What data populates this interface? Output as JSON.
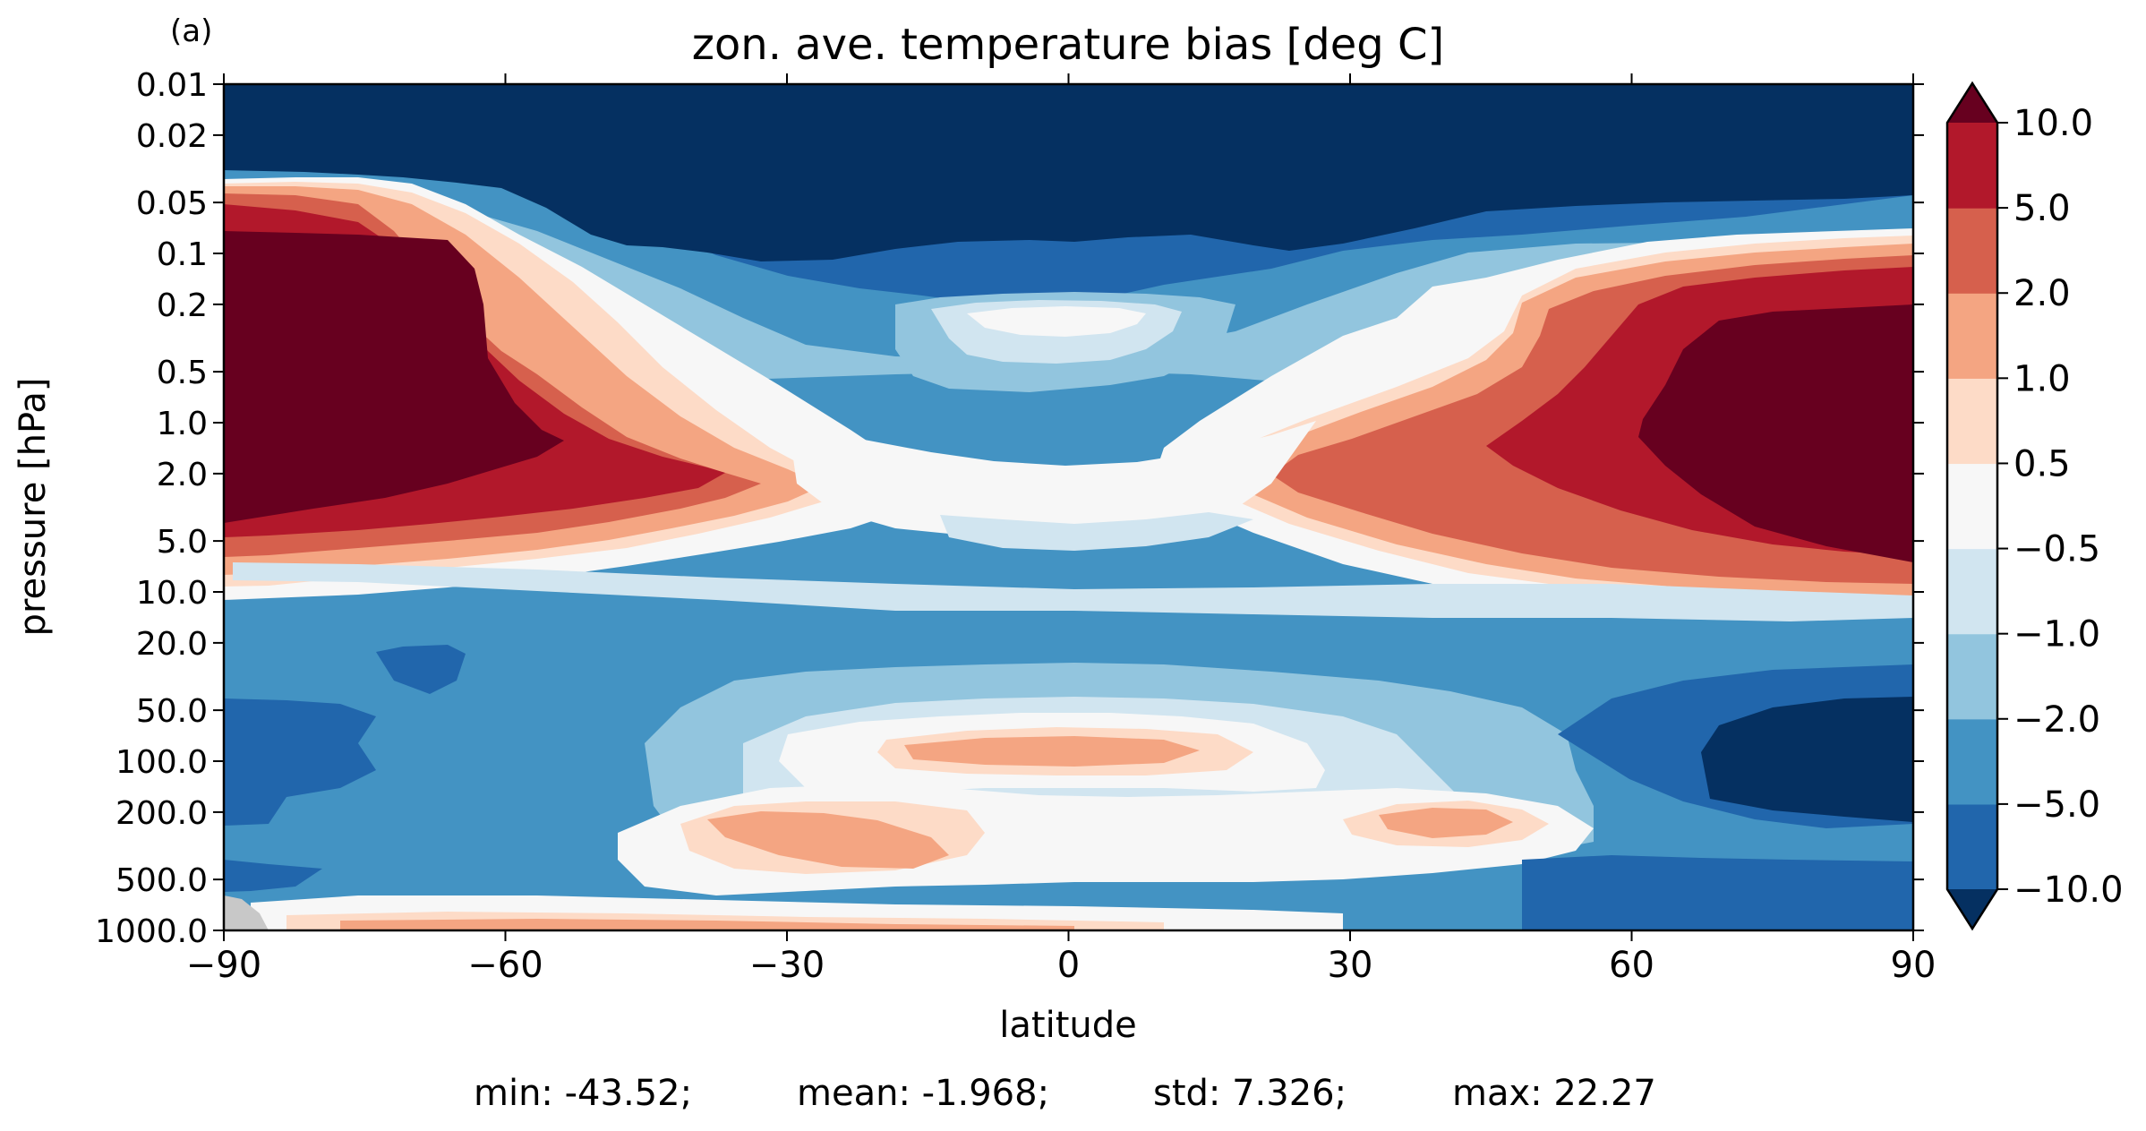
{
  "panel_label": "(a)",
  "chart_data": {
    "type": "contourf",
    "title": "zon. ave. temperature bias [deg C]",
    "xlabel": "latitude",
    "ylabel": "pressure [hPa]",
    "xlim": [
      -90,
      90
    ],
    "ylim": [
      1000.0,
      0.01
    ],
    "yscale": "log",
    "x_ticks": [
      "−90",
      "−60",
      "−30",
      "0",
      "30",
      "60",
      "90"
    ],
    "y_ticks": [
      "0.01",
      "0.02",
      "0.05",
      "0.1",
      "0.2",
      "0.5",
      "1.0",
      "2.0",
      "5.0",
      "10.0",
      "20.0",
      "50.0",
      "100.0",
      "200.0",
      "500.0",
      "1000.0"
    ],
    "colorbar": {
      "extend": "both",
      "levels": [
        -10.0,
        -5.0,
        -2.0,
        -1.0,
        -0.5,
        0.5,
        1.0,
        2.0,
        5.0,
        10.0
      ],
      "tick_labels": [
        "−10.0",
        "−5.0",
        "−2.0",
        "−1.0",
        "−0.5",
        "0.5",
        "1.0",
        "2.0",
        "5.0",
        "10.0"
      ],
      "colors": [
        "#053061",
        "#2166ac",
        "#4393c3",
        "#92c5de",
        "#d1e5f0",
        "#f7f7f7",
        "#fddbc7",
        "#f4a582",
        "#d6604d",
        "#b2182b",
        "#67001f"
      ],
      "nan_color": "#c8c8c8"
    },
    "features": [
      {
        "name": "upper cold cap",
        "value_class": "< -10",
        "lat_range": [
          -90,
          90
        ],
        "pressure_range": [
          0.01,
          0.05
        ]
      },
      {
        "name": "southern stratospheric warm core",
        "value_class": "> 10",
        "lat_center": -85,
        "pressure_center": 1.0
      },
      {
        "name": "northern stratospheric warm core",
        "value_class": "> 10",
        "lat_center": 80,
        "pressure_center": 1.5
      },
      {
        "name": "tropical upper cool tongue",
        "value_class": "-1 to -0.5",
        "lat_center": 0,
        "pressure_center": 0.25
      },
      {
        "name": "tropical tropopause warm band",
        "value_class": "1 to 2",
        "lat_center": -1,
        "pressure_center": 90
      },
      {
        "name": "southern subtropical warm patch",
        "value_class": "1 to 2",
        "lat_center": -28,
        "pressure_center": 280
      },
      {
        "name": "northern subtropical warm patch",
        "value_class": "1 to 2",
        "lat_center": 38,
        "pressure_center": 210
      },
      {
        "name": "northern high-latitude cold pool",
        "value_class": "< -10",
        "lat_center": 80,
        "pressure_center": 100
      },
      {
        "name": "near-surface warm strip",
        "value_class": "0.5 to 2",
        "lat_range": [
          -80,
          10
        ],
        "pressure_center": 980
      }
    ],
    "stats": {
      "min": "-43.52",
      "mean": "-1.968",
      "std": "7.326",
      "max": "22.27"
    }
  },
  "stats_text": {
    "min": "min: -43.52;",
    "mean": "mean: -1.968;",
    "std": "std: 7.326;",
    "max": "max: 22.27"
  }
}
